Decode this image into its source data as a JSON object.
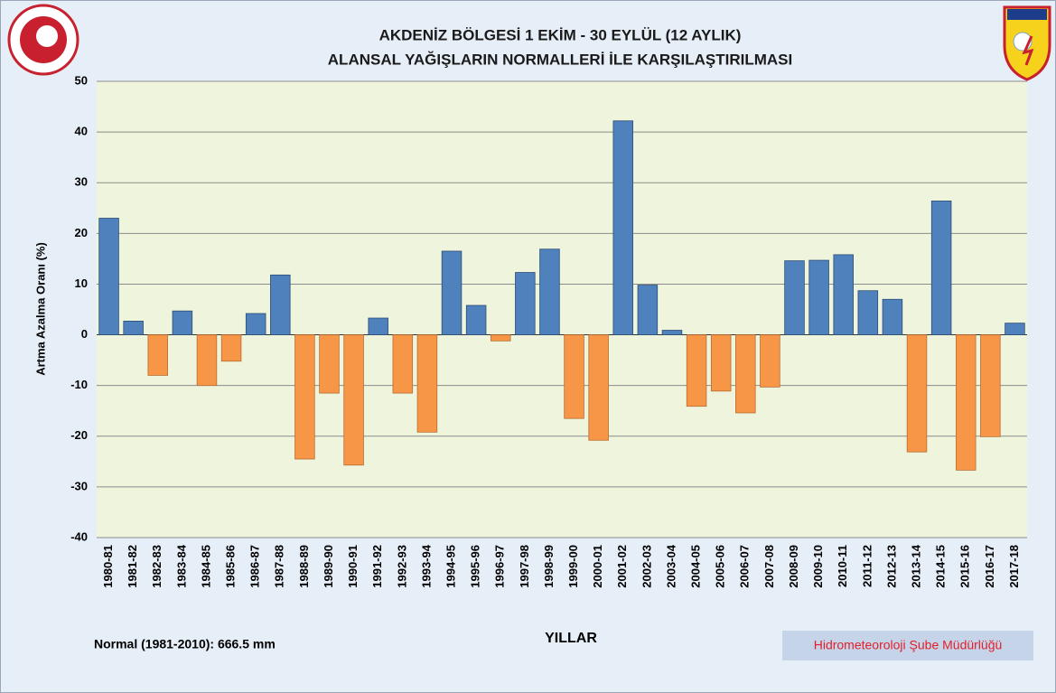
{
  "chart_data": {
    "type": "bar",
    "title": "AKDENİZ BÖLGESİ  1 EKİM - 30 EYLÜL (12 AYLIK)",
    "subtitle": "ALANSAL YAĞIŞLARIN NORMALLERİ İLE KARŞILAŞTIRILMASI",
    "x_label": "YILLAR",
    "y_label": "Artma Azalma Oranı (%)",
    "note": "Normal (1981-2010): 666.5 mm",
    "credit": "Hidrometeoroloji Şube Müdürlüğü",
    "categories": [
      "1980-81",
      "1981-82",
      "1982-83",
      "1983-84",
      "1984-85",
      "1985-86",
      "1986-87",
      "1987-88",
      "1988-89",
      "1989-90",
      "1990-91",
      "1991-92",
      "1992-93",
      "1993-94",
      "1994-95",
      "1995-96",
      "1996-97",
      "1997-98",
      "1998-99",
      "1999-00",
      "2000-01",
      "2001-02",
      "2002-03",
      "2003-04",
      "2004-05",
      "2005-06",
      "2006-07",
      "2007-08",
      "2008-09",
      "2009-10",
      "2010-11",
      "2011-12",
      "2012-13",
      "2013-14",
      "2014-15",
      "2015-16",
      "2016-17",
      "2017-18"
    ],
    "values": [
      23,
      2.7,
      -8,
      4.7,
      -10,
      -5.2,
      4.2,
      11.8,
      -24.5,
      -11.5,
      -25.7,
      3.3,
      -11.5,
      -19.2,
      16.5,
      5.8,
      -1.2,
      12.3,
      16.9,
      -16.5,
      -20.8,
      42.2,
      9.8,
      0.9,
      -14.1,
      -11.1,
      -15.4,
      -10.3,
      14.6,
      14.7,
      15.8,
      8.7,
      7,
      -23.1,
      26.4,
      -26.7,
      -20.1,
      2.3
    ],
    "positive_color": "#4f81bd",
    "negative_color": "#f79646",
    "ylim": [
      -40,
      50
    ],
    "yticks": [
      -40,
      -30,
      -20,
      -10,
      0,
      10,
      20,
      30,
      40,
      50
    ],
    "grid": true
  }
}
